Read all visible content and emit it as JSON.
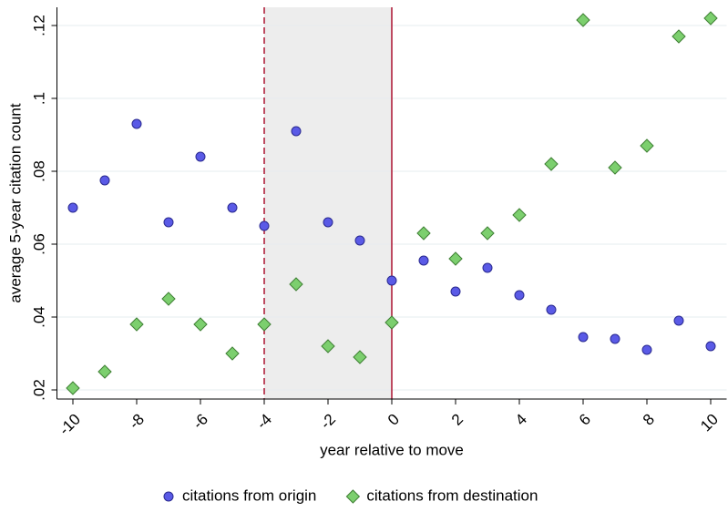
{
  "chart_data": {
    "type": "scatter",
    "x_label": "year relative to move",
    "y_label": "average 5-year citation count",
    "x": [
      -10,
      -9,
      -8,
      -7,
      -6,
      -5,
      -4,
      -3,
      -2,
      -1,
      0,
      1,
      2,
      3,
      4,
      5,
      6,
      7,
      8,
      9,
      10
    ],
    "series": [
      {
        "name": "citations from origin",
        "color": "#5a5ae6",
        "marker": "circle",
        "values": [
          0.07,
          0.0775,
          0.093,
          0.066,
          0.084,
          0.07,
          0.065,
          0.091,
          0.066,
          0.061,
          0.05,
          0.0555,
          0.047,
          0.0535,
          0.046,
          0.042,
          0.0345,
          0.034,
          0.031,
          0.039,
          0.032
        ]
      },
      {
        "name": "citations from destination",
        "color": "#7ccf6e",
        "marker": "diamond",
        "values": [
          0.0205,
          0.025,
          0.038,
          0.045,
          0.038,
          0.03,
          0.038,
          0.049,
          0.032,
          0.029,
          0.0385,
          0.063,
          0.056,
          0.063,
          0.068,
          0.082,
          0.1215,
          0.081,
          0.087,
          0.117,
          0.122
        ]
      }
    ],
    "xlim": [
      -10.5,
      10.5
    ],
    "ylim": [
      0.0175,
      0.125
    ],
    "xticks": [
      -10,
      -8,
      -6,
      -4,
      -2,
      0,
      2,
      4,
      6,
      8,
      10
    ],
    "yticks": [
      {
        "value": 0.02,
        "label": ".02"
      },
      {
        "value": 0.04,
        "label": ".04"
      },
      {
        "value": 0.06,
        "label": ".06"
      },
      {
        "value": 0.08,
        "label": ".08"
      },
      {
        "value": 0.1,
        "label": ".1"
      },
      {
        "value": 0.12,
        "label": ".12"
      }
    ],
    "grid": true,
    "shaded_region": [
      -4,
      0
    ],
    "vlines": [
      {
        "x": -4,
        "style": "dashed",
        "color": "#b0203c"
      },
      {
        "x": 0,
        "style": "solid",
        "color": "#b0203c"
      }
    ],
    "legend": "bottom"
  }
}
